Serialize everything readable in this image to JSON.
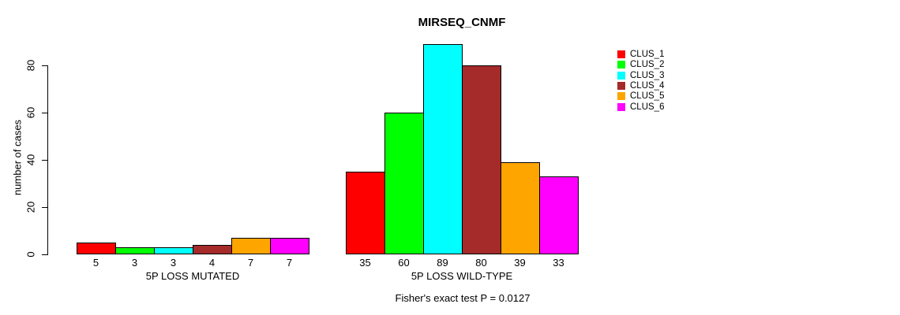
{
  "title": "MIRSEQ_CNMF",
  "footer_note": "Fisher's exact test P = 0.0127",
  "y_axis": {
    "label": "number of cases",
    "ticks": [
      0,
      20,
      40,
      60,
      80
    ]
  },
  "legend": {
    "items": [
      {
        "label": "CLUS_1",
        "color": "#FF0000"
      },
      {
        "label": "CLUS_2",
        "color": "#00FF00"
      },
      {
        "label": "CLUS_3",
        "color": "#00FFFF"
      },
      {
        "label": "CLUS_4",
        "color": "#A52A2A"
      },
      {
        "label": "CLUS_5",
        "color": "#FFA500"
      },
      {
        "label": "CLUS_6",
        "color": "#FF00FF"
      }
    ]
  },
  "chart_data": {
    "type": "bar",
    "title": "MIRSEQ_CNMF",
    "xlabel": "",
    "ylabel": "number of cases",
    "ylim": [
      0,
      89
    ],
    "yticks": [
      0,
      20,
      40,
      60,
      80
    ],
    "grid": false,
    "legend_position": "right",
    "bar_border_color": "#000000",
    "series_labels": [
      "CLUS_1",
      "CLUS_2",
      "CLUS_3",
      "CLUS_4",
      "CLUS_5",
      "CLUS_6"
    ],
    "colors": [
      "#FF0000",
      "#00FF00",
      "#00FFFF",
      "#A52A2A",
      "#FFA500",
      "#FF00FF"
    ],
    "groups": [
      {
        "label": "5P LOSS MUTATED",
        "values": [
          5,
          3,
          3,
          4,
          7,
          7
        ]
      },
      {
        "label": "5P LOSS WILD-TYPE",
        "values": [
          35,
          60,
          89,
          80,
          39,
          33
        ]
      }
    ],
    "annotation": "Fisher's exact test P = 0.0127"
  }
}
